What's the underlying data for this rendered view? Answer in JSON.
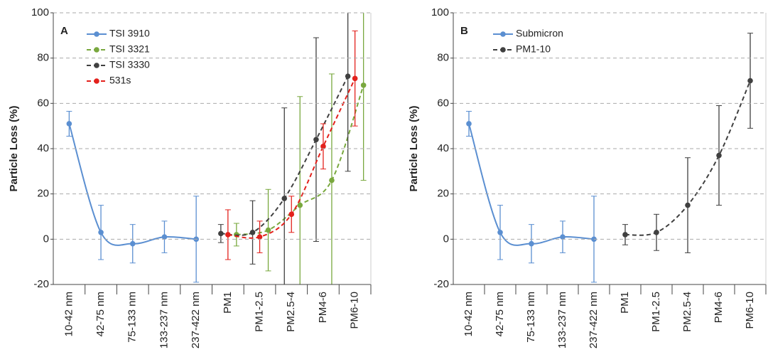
{
  "chart_data": [
    {
      "type": "line",
      "panel_label": "A",
      "ylabel": "Particle Loss (%)",
      "categories": [
        "10-42 nm",
        "42-75 nm",
        "75-133 nm",
        "133-237 nm",
        "237-422 nm",
        "PM1",
        "PM1-2.5",
        "PM2.5-4",
        "PM4-6",
        "PM6-10"
      ],
      "ylim": [
        -20,
        100
      ],
      "yticks": [
        -20,
        0,
        20,
        40,
        60,
        80,
        100
      ],
      "grid": true,
      "series": [
        {
          "name": "TSI 3910",
          "color": "#5b8fd1",
          "line_style": "solid",
          "values": [
            51,
            3,
            -2,
            1,
            0,
            null,
            null,
            null,
            null,
            null
          ],
          "errors": [
            5.5,
            12,
            8.5,
            7,
            19,
            null,
            null,
            null,
            null,
            null
          ]
        },
        {
          "name": "TSI 3321",
          "color": "#79a83e",
          "line_style": "dashed",
          "values": [
            null,
            null,
            null,
            null,
            null,
            2,
            4,
            15,
            26,
            68
          ],
          "errors": [
            null,
            null,
            null,
            null,
            null,
            5,
            18,
            48,
            47,
            42
          ]
        },
        {
          "name": "TSI 3330",
          "color": "#404040",
          "line_style": "dashed",
          "values": [
            null,
            null,
            null,
            null,
            null,
            2.5,
            3,
            18,
            44,
            72
          ],
          "errors": [
            null,
            null,
            null,
            null,
            null,
            4,
            14,
            40,
            45,
            42
          ]
        },
        {
          "name": "531s",
          "color": "#e3211c",
          "line_style": "dashed",
          "values": [
            null,
            null,
            null,
            null,
            null,
            2,
            1,
            11,
            41,
            71
          ],
          "errors": [
            null,
            null,
            null,
            null,
            null,
            11,
            7,
            8,
            10,
            21
          ]
        }
      ]
    },
    {
      "type": "line",
      "panel_label": "B",
      "ylabel": "Particle Loss (%)",
      "categories": [
        "10-42 nm",
        "42-75 nm",
        "75-133 nm",
        "133-237 nm",
        "237-422 nm",
        "PM1",
        "PM1-2.5",
        "PM2.5-4",
        "PM4-6",
        "PM6-10"
      ],
      "ylim": [
        -20,
        100
      ],
      "yticks": [
        -20,
        0,
        20,
        40,
        60,
        80,
        100
      ],
      "grid": true,
      "series": [
        {
          "name": "Submicron",
          "color": "#5b8fd1",
          "line_style": "solid",
          "values": [
            51,
            3,
            -2,
            1,
            0,
            null,
            null,
            null,
            null,
            null
          ],
          "errors": [
            5.5,
            12,
            8.5,
            7,
            19,
            null,
            null,
            null,
            null,
            null
          ]
        },
        {
          "name": "PM1-10",
          "color": "#404040",
          "line_style": "dashed",
          "values": [
            null,
            null,
            null,
            null,
            null,
            2,
            3,
            15,
            37,
            70
          ],
          "errors": [
            null,
            null,
            null,
            null,
            null,
            4.5,
            8,
            21,
            22,
            21
          ]
        }
      ]
    }
  ]
}
